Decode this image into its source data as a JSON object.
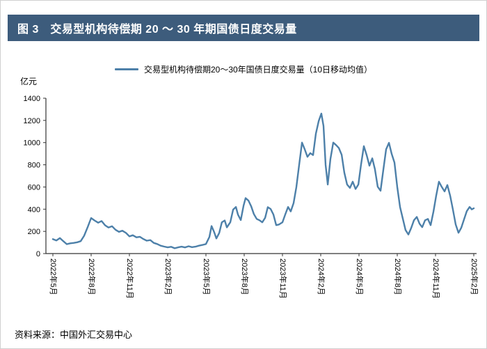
{
  "header": {
    "title": "图 3　交易型机构待偿期 20 ～ 30 年期国债日度交易量",
    "bar_color": "#3D5C7C"
  },
  "footer": {
    "source": "资料来源：中国外汇交易中心"
  },
  "chart_data": {
    "type": "line",
    "title": "交易型机构待偿期 20 ～ 30 年期国债日度交易量",
    "unit_label": "亿元",
    "legend": "交易型机构待偿期20～30年国债日度交易量（10日移动均值）",
    "line_color": "#4D80A9",
    "axis_color": "#333333",
    "ylim": [
      0,
      1400
    ],
    "y_ticks": [
      0,
      200,
      400,
      600,
      800,
      1000,
      1200,
      1400
    ],
    "x_tick_labels": [
      "2022年5月",
      "2022年8月",
      "2022年11月",
      "2023年2月",
      "2023年5月",
      "2023年8月",
      "2023年11月",
      "2024年2月",
      "2024年5月",
      "2024年8月",
      "2024年11月",
      "2025年2月"
    ],
    "x_range_months": 33,
    "grid": false,
    "legend_position": "top-center",
    "points": [
      [
        0.0,
        130
      ],
      [
        0.27,
        118
      ],
      [
        0.55,
        140
      ],
      [
        0.82,
        112
      ],
      [
        1.09,
        85
      ],
      [
        1.36,
        92
      ],
      [
        1.64,
        96
      ],
      [
        1.91,
        102
      ],
      [
        2.18,
        112
      ],
      [
        2.45,
        160
      ],
      [
        2.73,
        240
      ],
      [
        3.0,
        320
      ],
      [
        3.27,
        298
      ],
      [
        3.55,
        278
      ],
      [
        3.82,
        293
      ],
      [
        4.09,
        255
      ],
      [
        4.36,
        235
      ],
      [
        4.64,
        246
      ],
      [
        4.91,
        215
      ],
      [
        5.18,
        196
      ],
      [
        5.45,
        206
      ],
      [
        5.73,
        186
      ],
      [
        6.0,
        155
      ],
      [
        6.27,
        165
      ],
      [
        6.55,
        146
      ],
      [
        6.82,
        151
      ],
      [
        7.09,
        131
      ],
      [
        7.36,
        116
      ],
      [
        7.64,
        121
      ],
      [
        7.91,
        96
      ],
      [
        8.18,
        86
      ],
      [
        8.45,
        71
      ],
      [
        8.73,
        63
      ],
      [
        9.0,
        56
      ],
      [
        9.27,
        61
      ],
      [
        9.55,
        48
      ],
      [
        9.82,
        56
      ],
      [
        10.09,
        62
      ],
      [
        10.36,
        55
      ],
      [
        10.64,
        66
      ],
      [
        10.91,
        58
      ],
      [
        11.18,
        62
      ],
      [
        11.45,
        71
      ],
      [
        11.73,
        78
      ],
      [
        12.0,
        86
      ],
      [
        12.27,
        150
      ],
      [
        12.44,
        248
      ],
      [
        12.65,
        192
      ],
      [
        12.82,
        136
      ],
      [
        13.04,
        186
      ],
      [
        13.25,
        282
      ],
      [
        13.47,
        298
      ],
      [
        13.64,
        236
      ],
      [
        13.91,
        282
      ],
      [
        14.13,
        396
      ],
      [
        14.35,
        420
      ],
      [
        14.51,
        352
      ],
      [
        14.73,
        302
      ],
      [
        14.95,
        432
      ],
      [
        15.11,
        500
      ],
      [
        15.33,
        478
      ],
      [
        15.55,
        425
      ],
      [
        15.76,
        356
      ],
      [
        15.98,
        312
      ],
      [
        16.2,
        300
      ],
      [
        16.42,
        282
      ],
      [
        16.64,
        322
      ],
      [
        16.85,
        418
      ],
      [
        17.07,
        402
      ],
      [
        17.29,
        352
      ],
      [
        17.51,
        256
      ],
      [
        17.73,
        262
      ],
      [
        18.0,
        282
      ],
      [
        18.22,
        352
      ],
      [
        18.44,
        420
      ],
      [
        18.65,
        380
      ],
      [
        18.87,
        455
      ],
      [
        19.09,
        600
      ],
      [
        19.31,
        800
      ],
      [
        19.53,
        1000
      ],
      [
        19.75,
        938
      ],
      [
        19.96,
        872
      ],
      [
        20.18,
        905
      ],
      [
        20.4,
        888
      ],
      [
        20.62,
        1080
      ],
      [
        20.84,
        1195
      ],
      [
        21.05,
        1262
      ],
      [
        21.22,
        1150
      ],
      [
        21.38,
        800
      ],
      [
        21.55,
        622
      ],
      [
        21.76,
        850
      ],
      [
        21.98,
        1000
      ],
      [
        22.2,
        978
      ],
      [
        22.42,
        952
      ],
      [
        22.64,
        890
      ],
      [
        22.85,
        730
      ],
      [
        23.07,
        622
      ],
      [
        23.29,
        592
      ],
      [
        23.51,
        648
      ],
      [
        23.73,
        582
      ],
      [
        23.95,
        622
      ],
      [
        24.16,
        800
      ],
      [
        24.38,
        968
      ],
      [
        24.6,
        888
      ],
      [
        24.82,
        792
      ],
      [
        25.04,
        858
      ],
      [
        25.25,
        760
      ],
      [
        25.47,
        602
      ],
      [
        25.69,
        566
      ],
      [
        25.91,
        755
      ],
      [
        26.13,
        940
      ],
      [
        26.35,
        998
      ],
      [
        26.56,
        900
      ],
      [
        26.78,
        820
      ],
      [
        27.0,
        600
      ],
      [
        27.22,
        420
      ],
      [
        27.44,
        312
      ],
      [
        27.65,
        212
      ],
      [
        27.87,
        172
      ],
      [
        28.09,
        230
      ],
      [
        28.31,
        300
      ],
      [
        28.53,
        330
      ],
      [
        28.75,
        268
      ],
      [
        28.96,
        238
      ],
      [
        29.18,
        300
      ],
      [
        29.4,
        312
      ],
      [
        29.62,
        256
      ],
      [
        29.84,
        380
      ],
      [
        30.05,
        520
      ],
      [
        30.27,
        648
      ],
      [
        30.49,
        600
      ],
      [
        30.71,
        560
      ],
      [
        30.93,
        618
      ],
      [
        31.15,
        520
      ],
      [
        31.36,
        400
      ],
      [
        31.58,
        262
      ],
      [
        31.8,
        188
      ],
      [
        32.02,
        232
      ],
      [
        32.24,
        310
      ],
      [
        32.45,
        382
      ],
      [
        32.67,
        420
      ],
      [
        32.84,
        398
      ],
      [
        33.0,
        408
      ]
    ]
  }
}
